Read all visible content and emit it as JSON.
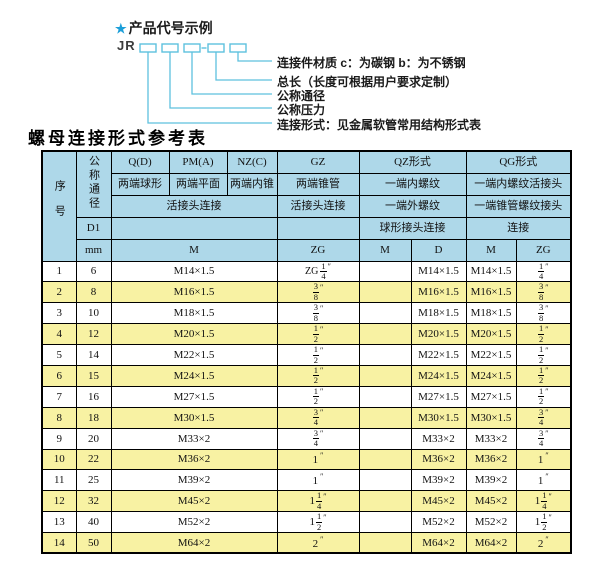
{
  "colors": {
    "header_bg": "#aed8e9",
    "stripe_bg": "#f8f2a3",
    "line_color": "#5ec1de",
    "star_color": "#1c9fd9"
  },
  "diagram": {
    "star": "★",
    "title": "产品代号示例",
    "code_prefix": "JR",
    "labels": [
      "连接件材质  c：为碳钢  b：为不锈钢",
      "总长（长度可根据用户要求定制）",
      "公称通径",
      "公称压力",
      "连接形式：见金属软管常用结构形式表"
    ]
  },
  "table": {
    "title": "螺母连接形式参考表",
    "header": {
      "col_no": "序号",
      "col_dn": "公称通径",
      "dn_sub1": "D1",
      "dn_sub2": "mm",
      "groups": [
        {
          "code": "Q(D)",
          "desc": "两端球形"
        },
        {
          "code": "PM(A)",
          "desc": "两端平面"
        },
        {
          "code": "NZ(C)",
          "desc": "两端内锥"
        },
        {
          "code": "GZ",
          "desc": "两端锥管"
        }
      ],
      "union_label": "活接头连接",
      "gz_union_label": "活接头连接",
      "qz": {
        "code": "QZ形式",
        "desc1": "一端内螺纹",
        "desc2": "一端外螺纹",
        "conn": "球形接头连接",
        "sub1": "M",
        "sub2": "D"
      },
      "qg": {
        "code": "QG形式",
        "desc1": "一端内螺纹活接头",
        "desc2": "一端锥管螺纹接头",
        "conn": "连接",
        "sub1": "M",
        "sub2": "ZG"
      },
      "m_label": "M",
      "zg_label": "ZG"
    },
    "rows": [
      {
        "no": "1",
        "dn": "6",
        "m": "M14×1.5",
        "zg": {
          "pre": "ZG",
          "n": "1",
          "d": "4"
        },
        "qz_m": "",
        "qz_d": "M14×1.5",
        "qg_m": "M14×1.5",
        "qg_zg": {
          "n": "1",
          "d": "4"
        }
      },
      {
        "no": "2",
        "dn": "8",
        "m": "M16×1.5",
        "zg": {
          "n": "3",
          "d": "8"
        },
        "qz_m": "",
        "qz_d": "M16×1.5",
        "qg_m": "M16×1.5",
        "qg_zg": {
          "n": "3",
          "d": "8"
        }
      },
      {
        "no": "3",
        "dn": "10",
        "m": "M18×1.5",
        "zg": {
          "n": "3",
          "d": "8"
        },
        "qz_m": "",
        "qz_d": "M18×1.5",
        "qg_m": "M18×1.5",
        "qg_zg": {
          "n": "3",
          "d": "8"
        }
      },
      {
        "no": "4",
        "dn": "12",
        "m": "M20×1.5",
        "zg": {
          "n": "1",
          "d": "2"
        },
        "qz_m": "",
        "qz_d": "M20×1.5",
        "qg_m": "M20×1.5",
        "qg_zg": {
          "n": "1",
          "d": "2"
        }
      },
      {
        "no": "5",
        "dn": "14",
        "m": "M22×1.5",
        "zg": {
          "n": "1",
          "d": "2"
        },
        "qz_m": "",
        "qz_d": "M22×1.5",
        "qg_m": "M22×1.5",
        "qg_zg": {
          "n": "1",
          "d": "2"
        }
      },
      {
        "no": "6",
        "dn": "15",
        "m": "M24×1.5",
        "zg": {
          "n": "1",
          "d": "2"
        },
        "qz_m": "",
        "qz_d": "M24×1.5",
        "qg_m": "M24×1.5",
        "qg_zg": {
          "n": "1",
          "d": "2"
        }
      },
      {
        "no": "7",
        "dn": "16",
        "m": "M27×1.5",
        "zg": {
          "n": "1",
          "d": "2"
        },
        "qz_m": "",
        "qz_d": "M27×1.5",
        "qg_m": "M27×1.5",
        "qg_zg": {
          "n": "1",
          "d": "2"
        }
      },
      {
        "no": "8",
        "dn": "18",
        "m": "M30×1.5",
        "zg": {
          "n": "3",
          "d": "4"
        },
        "qz_m": "",
        "qz_d": "M30×1.5",
        "qg_m": "M30×1.5",
        "qg_zg": {
          "n": "3",
          "d": "4"
        }
      },
      {
        "no": "9",
        "dn": "20",
        "m": "M33×2",
        "zg": {
          "n": "3",
          "d": "4"
        },
        "qz_m": "",
        "qz_d": "M33×2",
        "qg_m": "M33×2",
        "qg_zg": {
          "n": "3",
          "d": "4"
        }
      },
      {
        "no": "10",
        "dn": "22",
        "m": "M36×2",
        "zg": {
          "w": "1"
        },
        "qz_m": "",
        "qz_d": "M36×2",
        "qg_m": "M36×2",
        "qg_zg": {
          "w": "1"
        }
      },
      {
        "no": "11",
        "dn": "25",
        "m": "M39×2",
        "zg": {
          "w": "1"
        },
        "qz_m": "",
        "qz_d": "M39×2",
        "qg_m": "M39×2",
        "qg_zg": {
          "w": "1"
        }
      },
      {
        "no": "12",
        "dn": "32",
        "m": "M45×2",
        "zg": {
          "w": "1",
          "n": "1",
          "d": "4"
        },
        "qz_m": "",
        "qz_d": "M45×2",
        "qg_m": "M45×2",
        "qg_zg": {
          "w": "1",
          "n": "1",
          "d": "4"
        }
      },
      {
        "no": "13",
        "dn": "40",
        "m": "M52×2",
        "zg": {
          "w": "1",
          "n": "1",
          "d": "2"
        },
        "qz_m": "",
        "qz_d": "M52×2",
        "qg_m": "M52×2",
        "qg_zg": {
          "w": "1",
          "n": "1",
          "d": "2"
        }
      },
      {
        "no": "14",
        "dn": "50",
        "m": "M64×2",
        "zg": {
          "w": "2"
        },
        "qz_m": "",
        "qz_d": "M64×2",
        "qg_m": "M64×2",
        "qg_zg": {
          "w": "2"
        }
      }
    ]
  }
}
